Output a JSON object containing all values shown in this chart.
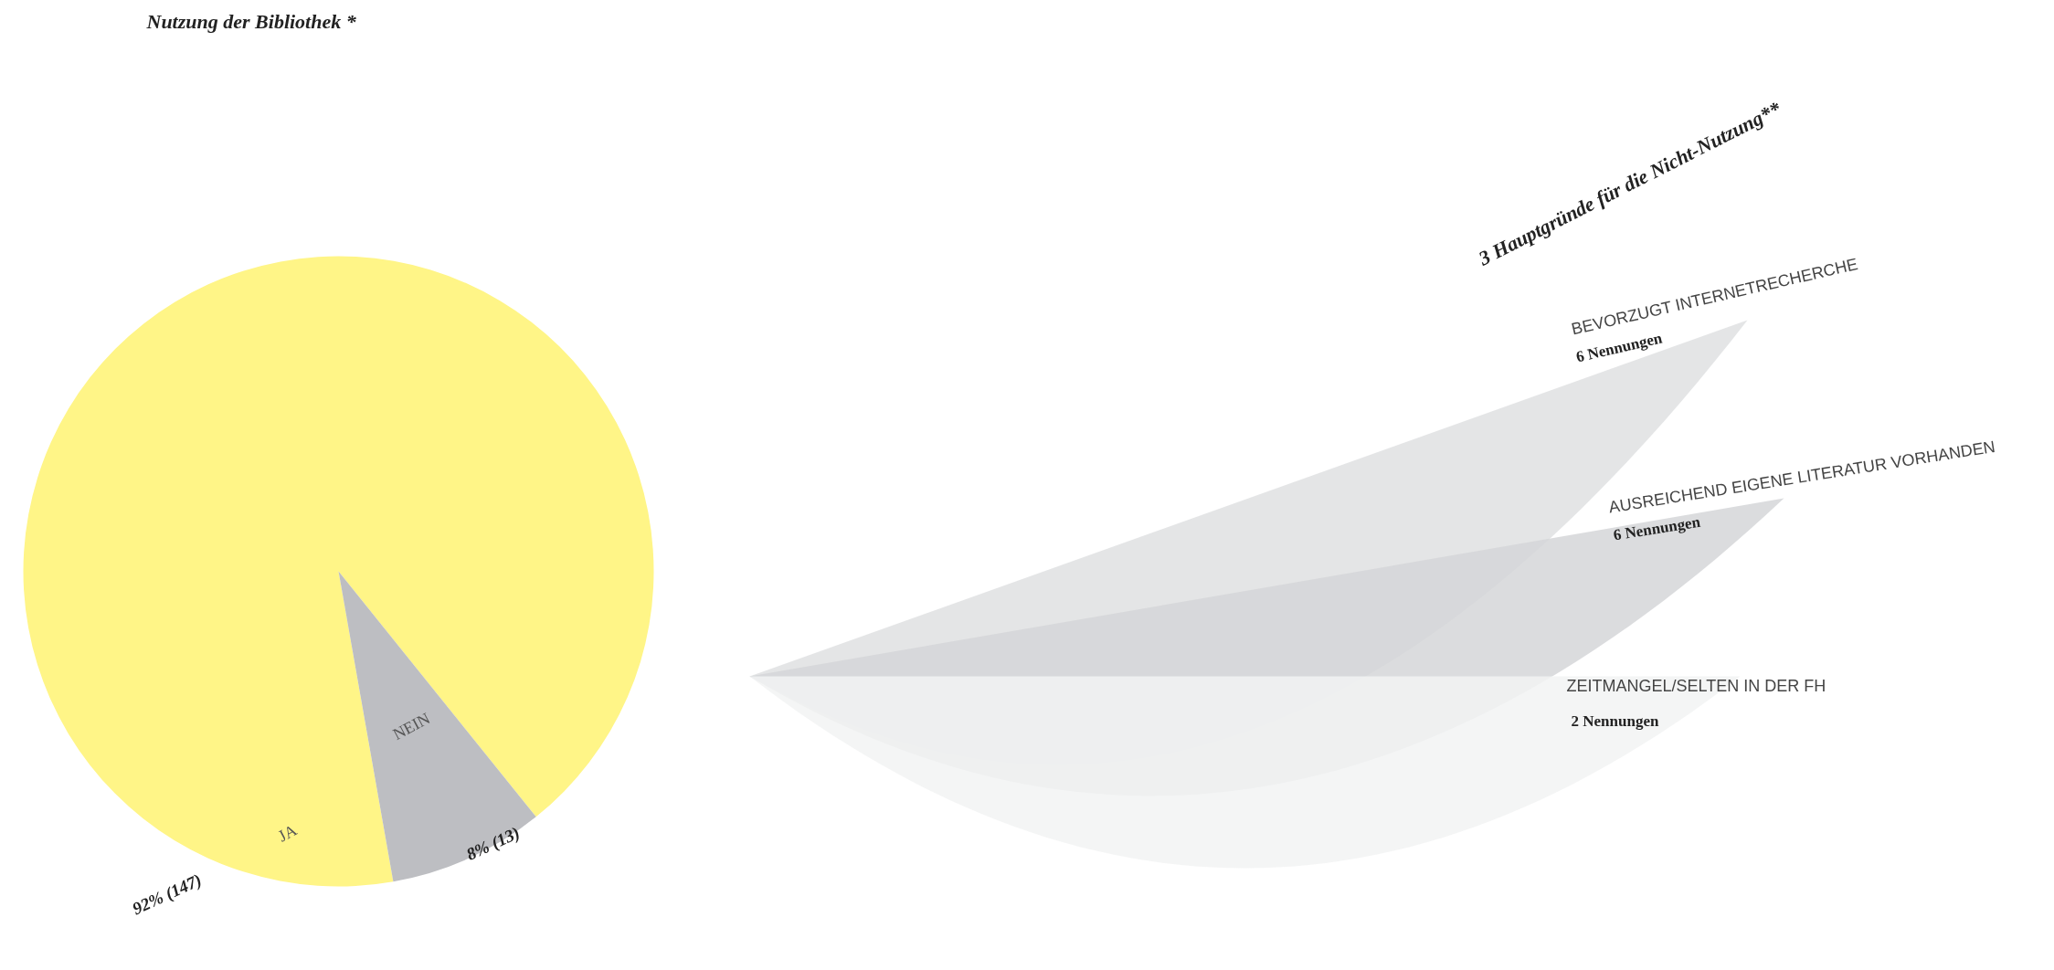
{
  "chart_data": [
    {
      "type": "pie",
      "title": "Nutzung der Bibliothek *",
      "categories": [
        "JA",
        "NEIN"
      ],
      "values": [
        92,
        8
      ],
      "value_labels": [
        "92% (147)",
        "8% (13)"
      ],
      "colors": [
        "#fff587",
        "#bdbec2"
      ]
    },
    {
      "type": "other",
      "title": "3 Hauptgründe für die Nicht-Nutzung**",
      "categories": [
        "BEVORZUGT INTERNETRECHERCHE",
        "AUSREICHEND EIGENE LITERATUR VORHANDEN",
        "ZEITMANGEL/SELTEN IN DER FH"
      ],
      "values": [
        6,
        6,
        2
      ],
      "value_labels": [
        "6 Nennungen",
        "6 Nennungen",
        "2 Nennungen"
      ],
      "colors": [
        "#dfe0e2",
        "#d5d6d8",
        "#f2f3f3"
      ]
    }
  ]
}
